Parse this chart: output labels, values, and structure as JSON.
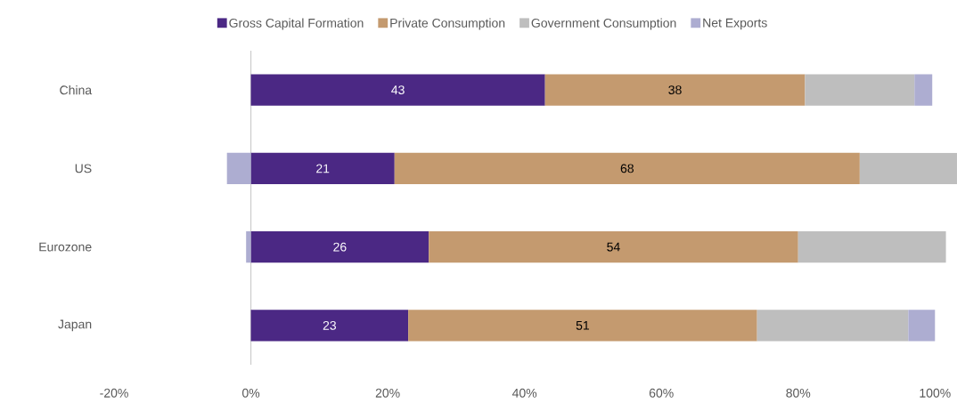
{
  "chart_data": {
    "type": "bar",
    "orientation": "horizontal",
    "stacked": true,
    "categories": [
      "China",
      "US",
      "Eurozone",
      "Japan"
    ],
    "series": [
      {
        "name": "Gross Capital Formation",
        "color": "#4b2884",
        "values": [
          43,
          21,
          26,
          23
        ],
        "value_labels": [
          "43",
          "21",
          "26",
          "23"
        ]
      },
      {
        "name": "Private Consumption",
        "color": "#c49a6f",
        "values": [
          38,
          68,
          54,
          51
        ],
        "value_labels": [
          "38",
          "68",
          "54",
          "51"
        ]
      },
      {
        "name": "Government Consumption",
        "color": "#bebebe",
        "values": [
          16.0,
          14.3,
          21.6,
          22.1
        ]
      },
      {
        "name": "Net Exports",
        "color": "#adadd1",
        "values": [
          2.6,
          -3.5,
          -0.7,
          3.9
        ]
      }
    ],
    "xlim": [
      -20,
      104
    ],
    "xticks": [
      {
        "value": -20,
        "label": "-20%"
      },
      {
        "value": 0,
        "label": "0%"
      },
      {
        "value": 20,
        "label": "20%"
      },
      {
        "value": 40,
        "label": "40%"
      },
      {
        "value": 60,
        "label": "60%"
      },
      {
        "value": 80,
        "label": "80%"
      },
      {
        "value": 100,
        "label": "100%"
      }
    ],
    "legend": "top"
  }
}
